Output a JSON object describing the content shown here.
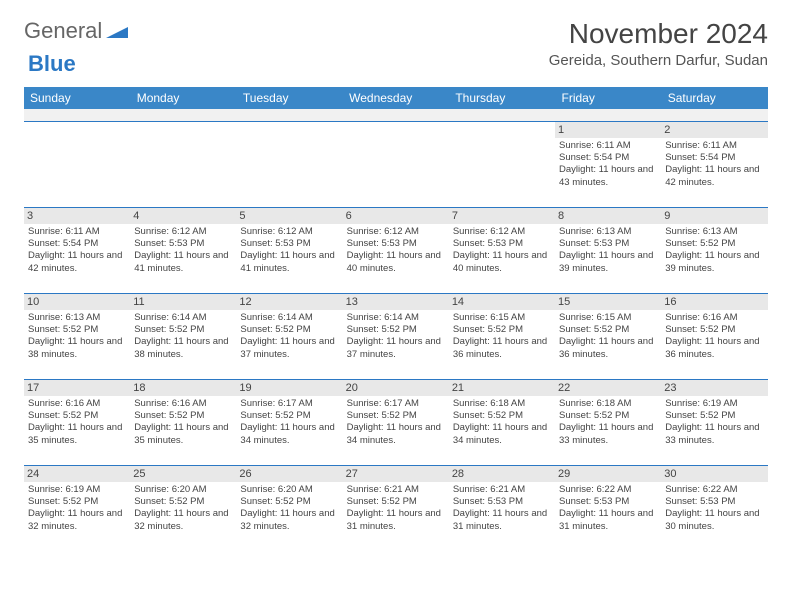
{
  "logo": {
    "word1": "General",
    "word2": "Blue"
  },
  "title": "November 2024",
  "location": "Gereida, Southern Darfur, Sudan",
  "colors": {
    "header_bg": "#3a87c8",
    "header_text": "#ffffff",
    "row_border": "#2b78c4",
    "daynum_bg": "#e8e8e8",
    "spacer_bg": "#f1f1f1",
    "body_text": "#444444",
    "logo_blue": "#2b78c4",
    "logo_gray": "#666666"
  },
  "typography": {
    "title_fontsize": 28,
    "location_fontsize": 15,
    "dayhead_fontsize": 12,
    "daynum_fontsize": 11,
    "detail_fontsize": 9.5
  },
  "day_labels": [
    "Sunday",
    "Monday",
    "Tuesday",
    "Wednesday",
    "Thursday",
    "Friday",
    "Saturday"
  ],
  "weeks": [
    [
      {
        "n": "",
        "sr": "",
        "ss": "",
        "dl": ""
      },
      {
        "n": "",
        "sr": "",
        "ss": "",
        "dl": ""
      },
      {
        "n": "",
        "sr": "",
        "ss": "",
        "dl": ""
      },
      {
        "n": "",
        "sr": "",
        "ss": "",
        "dl": ""
      },
      {
        "n": "",
        "sr": "",
        "ss": "",
        "dl": ""
      },
      {
        "n": "1",
        "sr": "Sunrise: 6:11 AM",
        "ss": "Sunset: 5:54 PM",
        "dl": "Daylight: 11 hours and 43 minutes."
      },
      {
        "n": "2",
        "sr": "Sunrise: 6:11 AM",
        "ss": "Sunset: 5:54 PM",
        "dl": "Daylight: 11 hours and 42 minutes."
      }
    ],
    [
      {
        "n": "3",
        "sr": "Sunrise: 6:11 AM",
        "ss": "Sunset: 5:54 PM",
        "dl": "Daylight: 11 hours and 42 minutes."
      },
      {
        "n": "4",
        "sr": "Sunrise: 6:12 AM",
        "ss": "Sunset: 5:53 PM",
        "dl": "Daylight: 11 hours and 41 minutes."
      },
      {
        "n": "5",
        "sr": "Sunrise: 6:12 AM",
        "ss": "Sunset: 5:53 PM",
        "dl": "Daylight: 11 hours and 41 minutes."
      },
      {
        "n": "6",
        "sr": "Sunrise: 6:12 AM",
        "ss": "Sunset: 5:53 PM",
        "dl": "Daylight: 11 hours and 40 minutes."
      },
      {
        "n": "7",
        "sr": "Sunrise: 6:12 AM",
        "ss": "Sunset: 5:53 PM",
        "dl": "Daylight: 11 hours and 40 minutes."
      },
      {
        "n": "8",
        "sr": "Sunrise: 6:13 AM",
        "ss": "Sunset: 5:53 PM",
        "dl": "Daylight: 11 hours and 39 minutes."
      },
      {
        "n": "9",
        "sr": "Sunrise: 6:13 AM",
        "ss": "Sunset: 5:52 PM",
        "dl": "Daylight: 11 hours and 39 minutes."
      }
    ],
    [
      {
        "n": "10",
        "sr": "Sunrise: 6:13 AM",
        "ss": "Sunset: 5:52 PM",
        "dl": "Daylight: 11 hours and 38 minutes."
      },
      {
        "n": "11",
        "sr": "Sunrise: 6:14 AM",
        "ss": "Sunset: 5:52 PM",
        "dl": "Daylight: 11 hours and 38 minutes."
      },
      {
        "n": "12",
        "sr": "Sunrise: 6:14 AM",
        "ss": "Sunset: 5:52 PM",
        "dl": "Daylight: 11 hours and 37 minutes."
      },
      {
        "n": "13",
        "sr": "Sunrise: 6:14 AM",
        "ss": "Sunset: 5:52 PM",
        "dl": "Daylight: 11 hours and 37 minutes."
      },
      {
        "n": "14",
        "sr": "Sunrise: 6:15 AM",
        "ss": "Sunset: 5:52 PM",
        "dl": "Daylight: 11 hours and 36 minutes."
      },
      {
        "n": "15",
        "sr": "Sunrise: 6:15 AM",
        "ss": "Sunset: 5:52 PM",
        "dl": "Daylight: 11 hours and 36 minutes."
      },
      {
        "n": "16",
        "sr": "Sunrise: 6:16 AM",
        "ss": "Sunset: 5:52 PM",
        "dl": "Daylight: 11 hours and 36 minutes."
      }
    ],
    [
      {
        "n": "17",
        "sr": "Sunrise: 6:16 AM",
        "ss": "Sunset: 5:52 PM",
        "dl": "Daylight: 11 hours and 35 minutes."
      },
      {
        "n": "18",
        "sr": "Sunrise: 6:16 AM",
        "ss": "Sunset: 5:52 PM",
        "dl": "Daylight: 11 hours and 35 minutes."
      },
      {
        "n": "19",
        "sr": "Sunrise: 6:17 AM",
        "ss": "Sunset: 5:52 PM",
        "dl": "Daylight: 11 hours and 34 minutes."
      },
      {
        "n": "20",
        "sr": "Sunrise: 6:17 AM",
        "ss": "Sunset: 5:52 PM",
        "dl": "Daylight: 11 hours and 34 minutes."
      },
      {
        "n": "21",
        "sr": "Sunrise: 6:18 AM",
        "ss": "Sunset: 5:52 PM",
        "dl": "Daylight: 11 hours and 34 minutes."
      },
      {
        "n": "22",
        "sr": "Sunrise: 6:18 AM",
        "ss": "Sunset: 5:52 PM",
        "dl": "Daylight: 11 hours and 33 minutes."
      },
      {
        "n": "23",
        "sr": "Sunrise: 6:19 AM",
        "ss": "Sunset: 5:52 PM",
        "dl": "Daylight: 11 hours and 33 minutes."
      }
    ],
    [
      {
        "n": "24",
        "sr": "Sunrise: 6:19 AM",
        "ss": "Sunset: 5:52 PM",
        "dl": "Daylight: 11 hours and 32 minutes."
      },
      {
        "n": "25",
        "sr": "Sunrise: 6:20 AM",
        "ss": "Sunset: 5:52 PM",
        "dl": "Daylight: 11 hours and 32 minutes."
      },
      {
        "n": "26",
        "sr": "Sunrise: 6:20 AM",
        "ss": "Sunset: 5:52 PM",
        "dl": "Daylight: 11 hours and 32 minutes."
      },
      {
        "n": "27",
        "sr": "Sunrise: 6:21 AM",
        "ss": "Sunset: 5:52 PM",
        "dl": "Daylight: 11 hours and 31 minutes."
      },
      {
        "n": "28",
        "sr": "Sunrise: 6:21 AM",
        "ss": "Sunset: 5:53 PM",
        "dl": "Daylight: 11 hours and 31 minutes."
      },
      {
        "n": "29",
        "sr": "Sunrise: 6:22 AM",
        "ss": "Sunset: 5:53 PM",
        "dl": "Daylight: 11 hours and 31 minutes."
      },
      {
        "n": "30",
        "sr": "Sunrise: 6:22 AM",
        "ss": "Sunset: 5:53 PM",
        "dl": "Daylight: 11 hours and 30 minutes."
      }
    ]
  ]
}
